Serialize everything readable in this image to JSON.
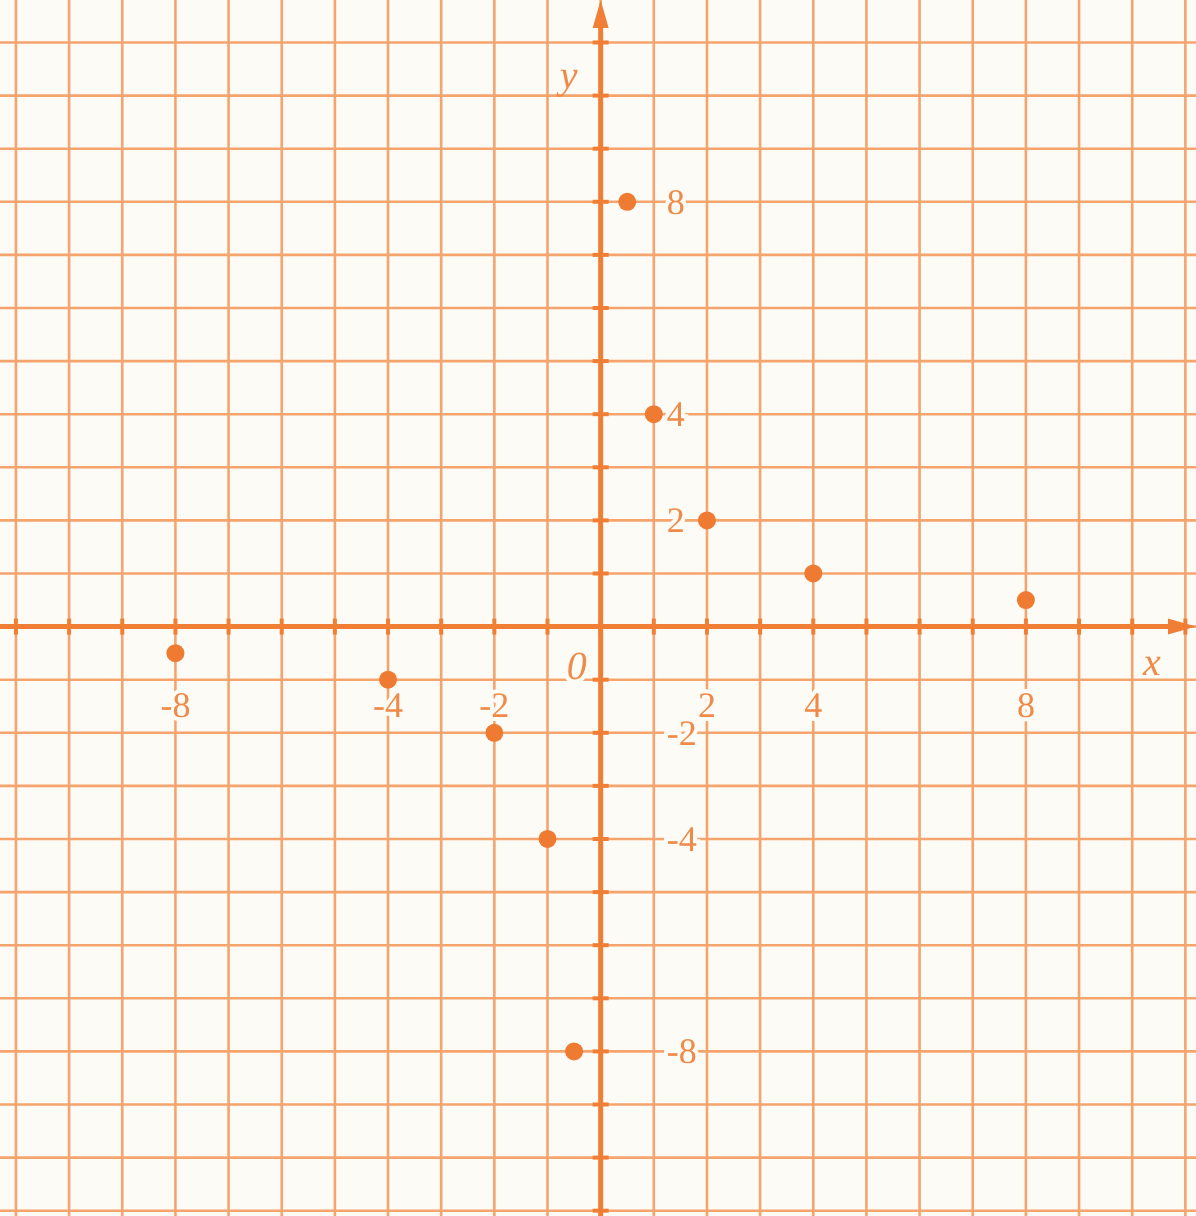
{
  "chart_data": {
    "type": "scatter",
    "xlabel": "x",
    "ylabel": "y",
    "xlim": [
      -11.3,
      11.2
    ],
    "ylim": [
      -11.1,
      11.8
    ],
    "xticks": [
      {
        "value": -11,
        "label": null
      },
      {
        "value": -10,
        "label": null
      },
      {
        "value": -9,
        "label": null
      },
      -8,
      {
        "value": -7,
        "label": null
      },
      {
        "value": -6,
        "label": null
      },
      {
        "value": -5,
        "label": null
      },
      -4,
      {
        "value": -3,
        "label": null
      },
      -2,
      {
        "value": -1,
        "label": null
      },
      {
        "value": 0,
        "label": null
      },
      {
        "value": 1,
        "label": null
      },
      2,
      {
        "value": 3,
        "label": null
      },
      4,
      {
        "value": 5,
        "label": null
      },
      {
        "value": 6,
        "label": null
      },
      {
        "value": 7,
        "label": null
      },
      8,
      {
        "value": 9,
        "label": null
      },
      {
        "value": 10,
        "label": null
      },
      {
        "value": 11,
        "label": null
      }
    ],
    "annotations": [
      "0"
    ],
    "yticks": [
      {
        "value": -11,
        "label": null
      },
      {
        "value": -10,
        "label": null
      },
      {
        "value": -9,
        "label": null
      },
      -8,
      {
        "value": -7,
        "label": null
      },
      {
        "value": -6,
        "label": null
      },
      {
        "value": -5,
        "label": null
      },
      -4,
      {
        "value": -3,
        "label": null
      },
      -2,
      {
        "value": -1,
        "label": null
      },
      {
        "value": 0,
        "label": null
      },
      {
        "value": 1,
        "label": null
      },
      2,
      {
        "value": 3,
        "label": null
      },
      4,
      {
        "value": 5,
        "label": null
      },
      {
        "value": 6,
        "label": null
      },
      {
        "value": 7,
        "label": null
      },
      8,
      {
        "value": 9,
        "label": null
      },
      {
        "value": 10,
        "label": null
      },
      {
        "value": 11,
        "label": null
      }
    ],
    "grid": true,
    "marker": "circle",
    "series": [
      {
        "color": "#ef7a32",
        "x": [
          -8,
          -4,
          -2,
          -1,
          -0.5,
          0.5,
          1,
          2,
          4,
          8
        ],
        "values": [
          -0.5,
          -1,
          -2,
          -4,
          -8,
          8,
          4,
          2,
          1,
          0.5
        ]
      }
    ]
  }
}
